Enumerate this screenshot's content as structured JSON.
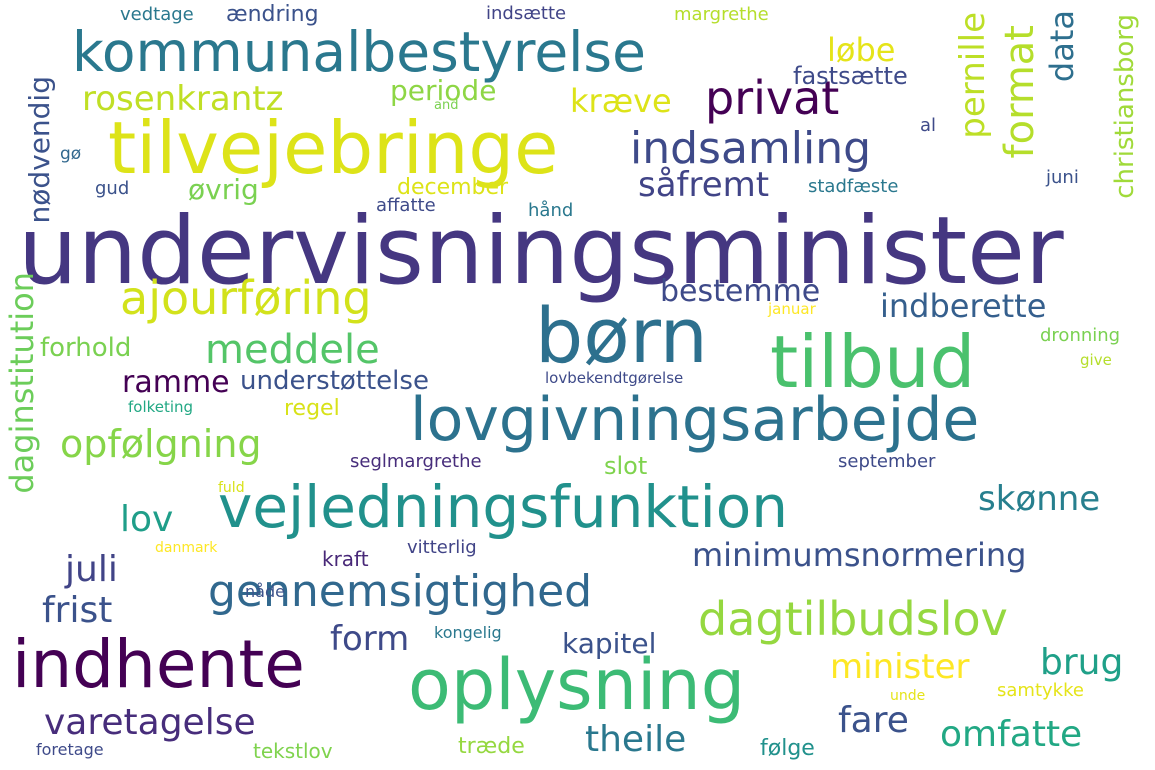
{
  "words": [
    {
      "text": "undervisningsminister",
      "color": "#453781"
    },
    {
      "text": "tilvejebringe",
      "color": "#dde318"
    },
    {
      "text": "kommunalbestyrelse",
      "color": "#2a788e"
    },
    {
      "text": "lovgivningsarbejde",
      "color": "#2c728e"
    },
    {
      "text": "vejledningsfunktion",
      "color": "#21918c"
    },
    {
      "text": "oplysning",
      "color": "#3cbb75"
    },
    {
      "text": "børn",
      "color": "#2d708e"
    },
    {
      "text": "tilbud",
      "color": "#4ac16d"
    },
    {
      "text": "indhente",
      "color": "#440154"
    },
    {
      "text": "ajourføring",
      "color": "#d2e21b"
    },
    {
      "text": "privat",
      "color": "#440154"
    },
    {
      "text": "indsamling",
      "color": "#3e4a89"
    },
    {
      "text": "såfremt",
      "color": "#414487"
    },
    {
      "text": "gennemsigtighed",
      "color": "#31688e"
    },
    {
      "text": "dagtilbudslov",
      "color": "#95d840"
    },
    {
      "text": "daginstitution",
      "color": "#6ccd5a"
    },
    {
      "text": "meddele",
      "color": "#54c568"
    },
    {
      "text": "opfølgning",
      "color": "#86d549"
    },
    {
      "text": "rosenkrantz",
      "color": "#c0df25"
    },
    {
      "text": "minimumsnormering",
      "color": "#3b528b"
    },
    {
      "text": "varetagelse",
      "color": "#472d7b"
    },
    {
      "text": "theile",
      "color": "#2a788e"
    },
    {
      "text": "omfatte",
      "color": "#22a884"
    },
    {
      "text": "minister",
      "color": "#fde725"
    },
    {
      "text": "bestemme",
      "color": "#3e4a89"
    },
    {
      "text": "indberette",
      "color": "#355f8d"
    },
    {
      "text": "format",
      "color": "#b5de2b"
    },
    {
      "text": "pernille",
      "color": "#bddf26"
    },
    {
      "text": "data",
      "color": "#2e6f8e"
    },
    {
      "text": "christiansborg",
      "color": "#a0da39"
    },
    {
      "text": "nødvendig",
      "color": "#3b528b"
    },
    {
      "text": "frist",
      "color": "#3b528b"
    },
    {
      "text": "juli",
      "color": "#414487"
    },
    {
      "text": "lov",
      "color": "#1f9e89"
    },
    {
      "text": "skønne",
      "color": "#277f8e"
    },
    {
      "text": "brug",
      "color": "#1fa088"
    },
    {
      "text": "fare",
      "color": "#3b528b"
    },
    {
      "text": "form",
      "color": "#3e4a89"
    },
    {
      "text": "kapitel",
      "color": "#3b528b"
    },
    {
      "text": "ramme",
      "color": "#440154"
    },
    {
      "text": "understøttelse",
      "color": "#3b528b"
    },
    {
      "text": "forhold",
      "color": "#7ad151"
    },
    {
      "text": "løbe",
      "color": "#e5e419"
    },
    {
      "text": "kræve",
      "color": "#dde318"
    },
    {
      "text": "periode",
      "color": "#8ed645"
    },
    {
      "text": "fastsætte",
      "color": "#3e4a89"
    },
    {
      "text": "december",
      "color": "#dde318"
    },
    {
      "text": "øvrig",
      "color": "#7ad151"
    },
    {
      "text": "regel",
      "color": "#d8e219"
    },
    {
      "text": "slot",
      "color": "#7fd34e"
    },
    {
      "text": "seglmargrethe",
      "color": "#472d7b"
    },
    {
      "text": "september",
      "color": "#3e4a89"
    },
    {
      "text": "vitterlig",
      "color": "#414487"
    },
    {
      "text": "kraft",
      "color": "#482878"
    },
    {
      "text": "tekstlov",
      "color": "#7fd34e"
    },
    {
      "text": "træde",
      "color": "#95d840"
    },
    {
      "text": "følge",
      "color": "#21918c"
    },
    {
      "text": "samtykke",
      "color": "#e5e419"
    },
    {
      "text": "foretage",
      "color": "#3e4a89"
    },
    {
      "text": "nåde",
      "color": "#3b528b"
    },
    {
      "text": "kongelig",
      "color": "#2a788e"
    },
    {
      "text": "danmark",
      "color": "#fde725"
    },
    {
      "text": "fuld",
      "color": "#d8e219"
    },
    {
      "text": "unde",
      "color": "#e5e419"
    },
    {
      "text": "folketing",
      "color": "#22a884"
    },
    {
      "text": "lovbekendtgørelse",
      "color": "#3e4a89"
    },
    {
      "text": "dronning",
      "color": "#7ad151"
    },
    {
      "text": "give",
      "color": "#b5de2b"
    },
    {
      "text": "januar",
      "color": "#fde725"
    },
    {
      "text": "stadfæste",
      "color": "#2a788e"
    },
    {
      "text": "juni",
      "color": "#3b528b"
    },
    {
      "text": "al",
      "color": "#3e4a89"
    },
    {
      "text": "affatte",
      "color": "#3e4a89"
    },
    {
      "text": "hånd",
      "color": "#2a788e"
    },
    {
      "text": "gud",
      "color": "#3b528b"
    },
    {
      "text": "gø",
      "color": "#31688e"
    },
    {
      "text": "and",
      "color": "#7ad151"
    },
    {
      "text": "vedtage",
      "color": "#2a788e"
    },
    {
      "text": "ændring",
      "color": "#3b528b"
    },
    {
      "text": "indsætte",
      "color": "#414487"
    },
    {
      "text": "margrethe",
      "color": "#b5de2b"
    }
  ]
}
